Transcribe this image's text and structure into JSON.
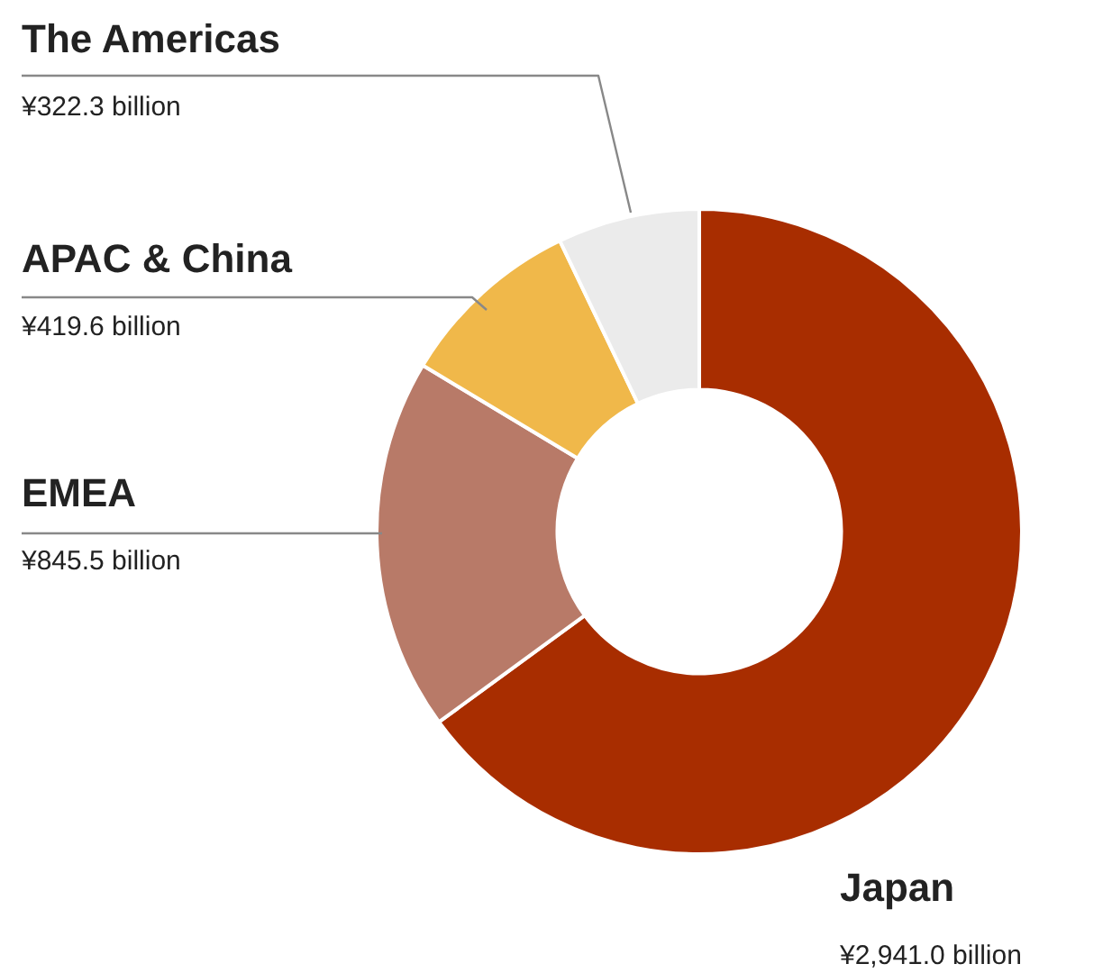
{
  "chart_data": {
    "type": "donut",
    "categories": [
      "Japan",
      "EMEA",
      "APAC & China",
      "The Americas"
    ],
    "values": [
      2941.0,
      845.5,
      419.6,
      322.3
    ],
    "colors": [
      "#a82d00",
      "#b87a68",
      "#f0b84a",
      "#ebebeb"
    ],
    "value_labels": [
      "¥2,941.0 billion",
      "¥845.5 billion",
      "¥419.6 billion",
      "¥322.3 billion"
    ],
    "legend": false
  }
}
